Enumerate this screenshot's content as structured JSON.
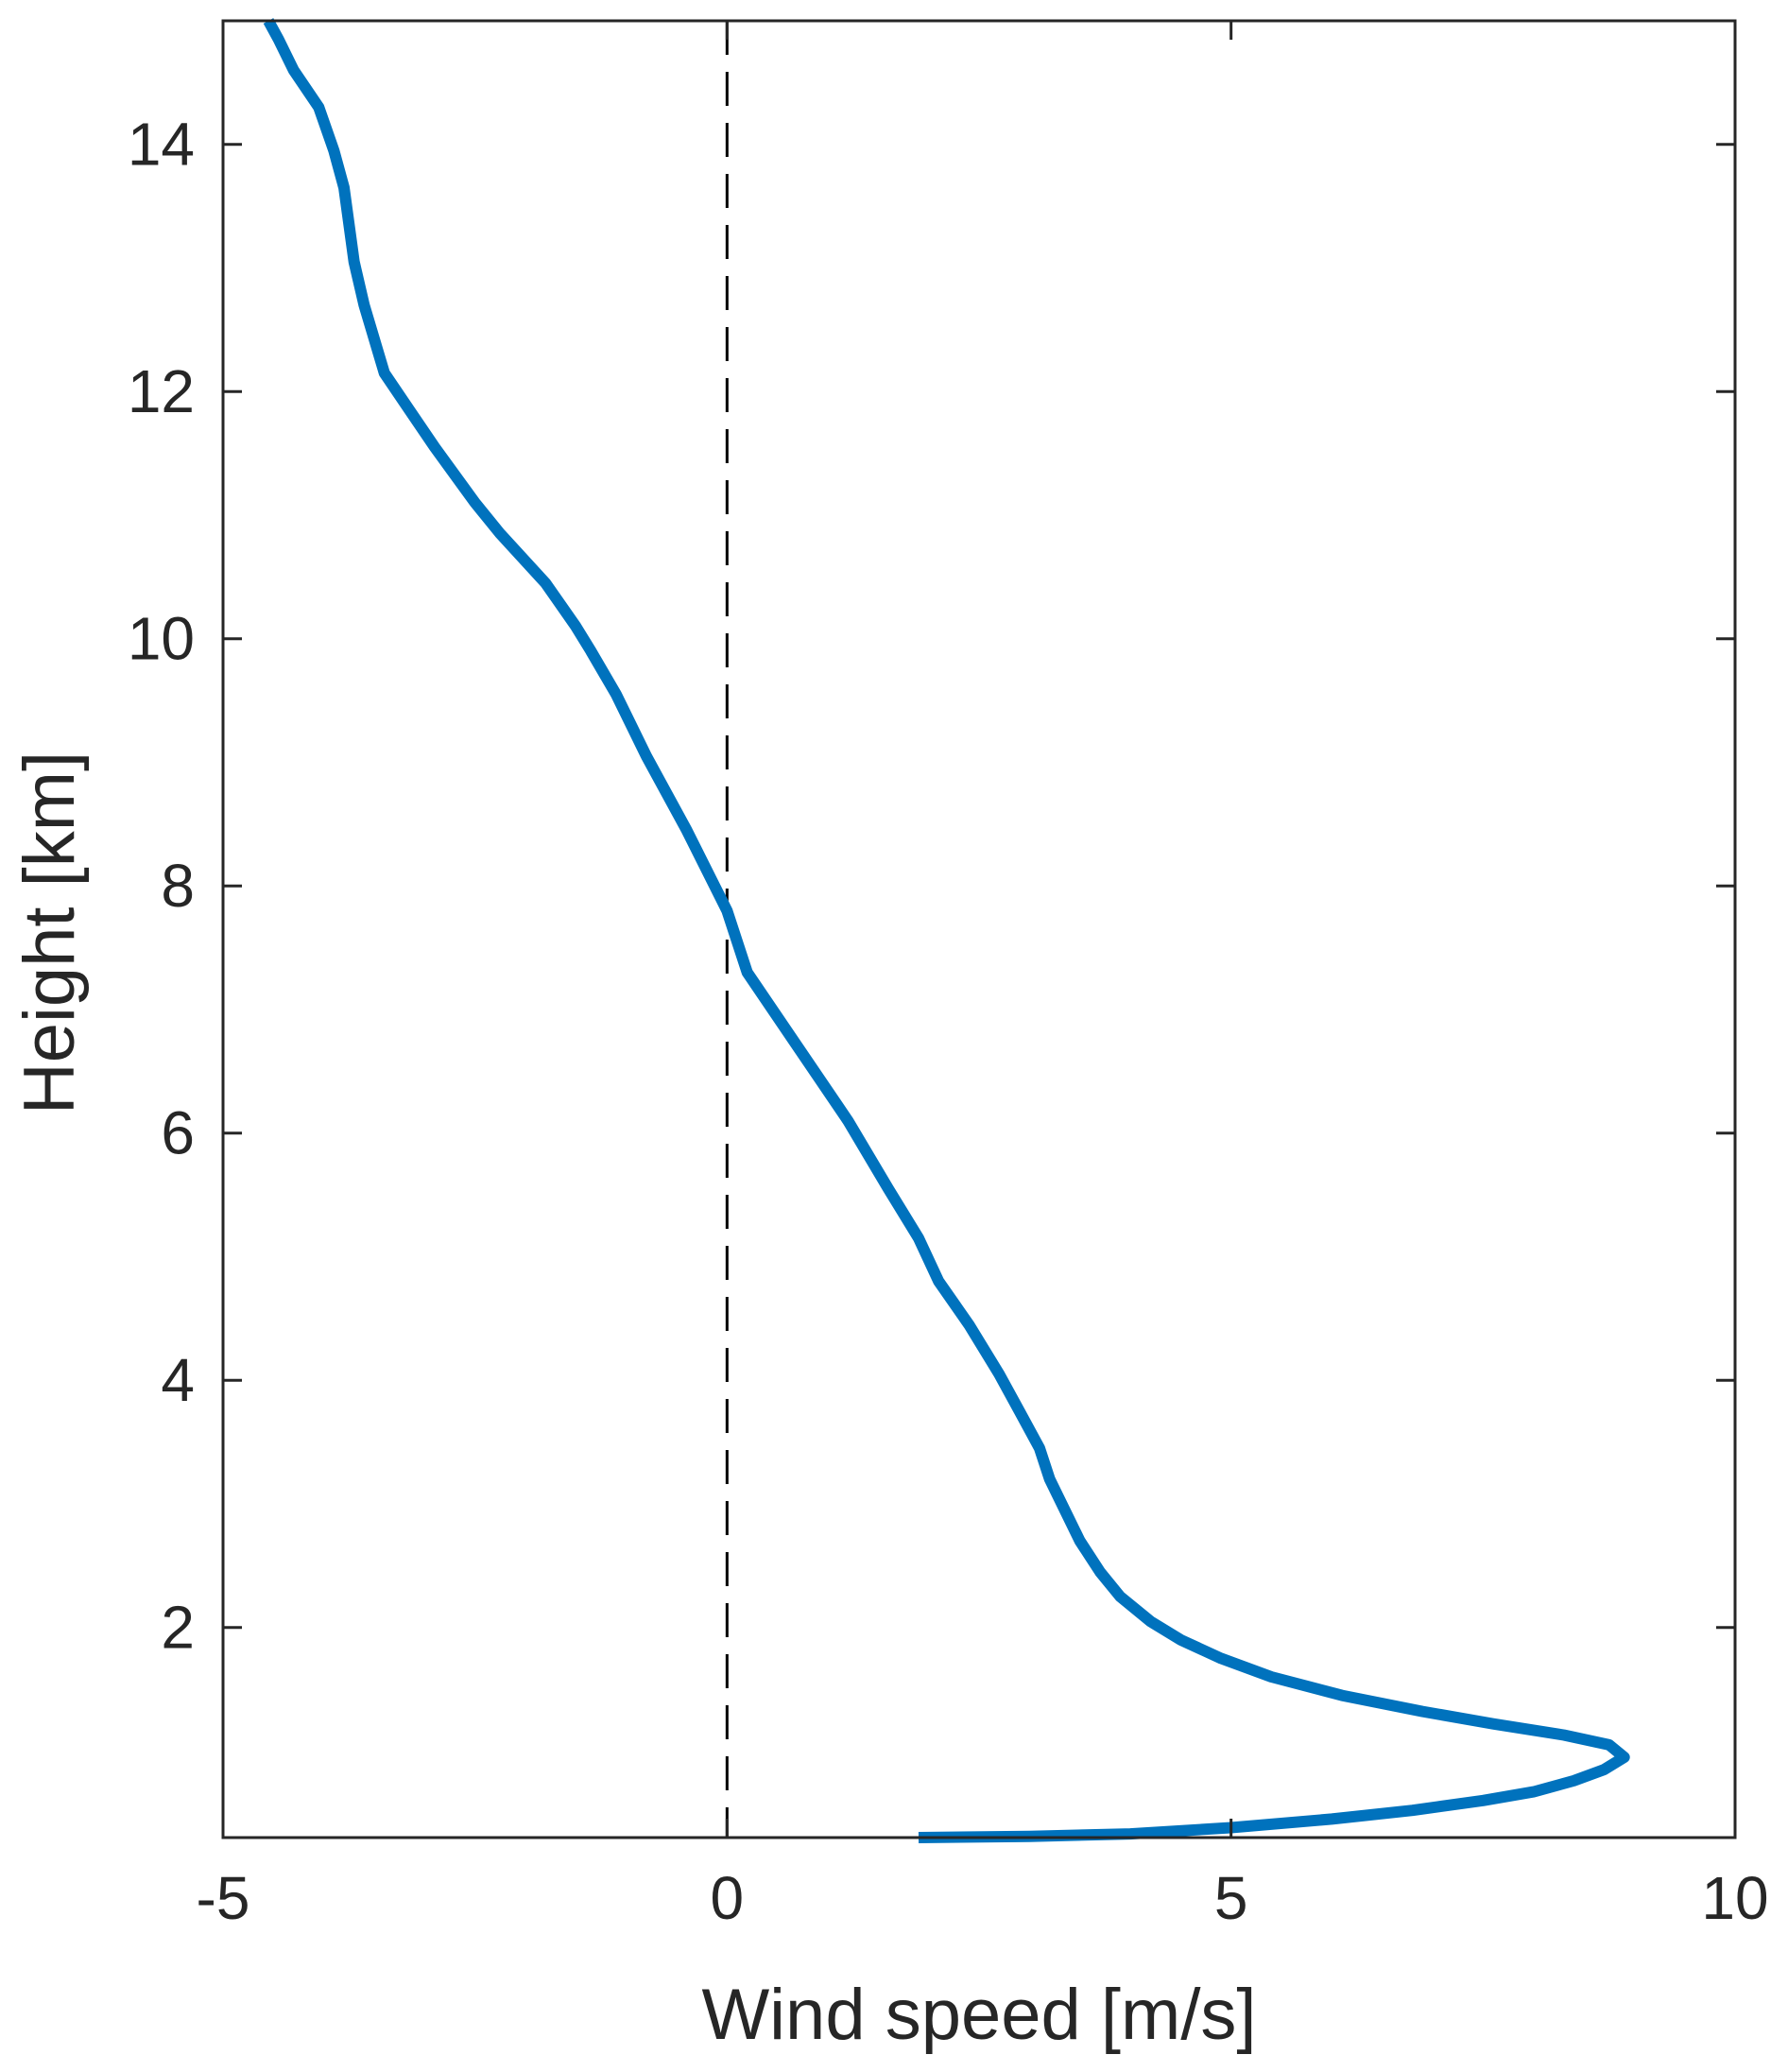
{
  "chart_data": {
    "type": "line",
    "title": "",
    "xlabel": "Wind speed [m/s]",
    "ylabel": "Height [km]",
    "xlim": [
      -5,
      10
    ],
    "ylim": [
      0.3,
      15
    ],
    "x_ticks": [
      -5,
      0,
      5,
      10
    ],
    "y_ticks": [
      2,
      4,
      6,
      8,
      10,
      12,
      14
    ],
    "x_tick_labels": [
      "-5",
      "0",
      "5",
      "10"
    ],
    "y_tick_labels": [
      "2",
      "4",
      "6",
      "8",
      "10",
      "12",
      "14"
    ],
    "grid": false,
    "legend": false,
    "reference_line": {
      "x": 0,
      "style": "dashed",
      "color": "#000000"
    },
    "series": [
      {
        "color": "#0072BD",
        "x": [
          1.9,
          3.0,
          4.0,
          5.0,
          6.0,
          6.8,
          7.5,
          8.0,
          8.4,
          8.7,
          8.9,
          8.75,
          8.3,
          7.6,
          6.9,
          6.1,
          5.4,
          4.9,
          4.5,
          4.2,
          3.9,
          3.7,
          3.5,
          3.35,
          3.2,
          3.1,
          2.9,
          2.7,
          2.4,
          2.1,
          1.9,
          1.6,
          1.2,
          0.7,
          0.2,
          0.0,
          -0.4,
          -0.8,
          -1.1,
          -1.35,
          -1.5,
          -1.8,
          -2.25,
          -2.5,
          -2.9,
          -3.15,
          -3.4,
          -3.6,
          -3.7,
          -3.8,
          -3.9,
          -4.05,
          -4.3,
          -4.45,
          -4.55
        ],
        "y": [
          0.3,
          0.31,
          0.33,
          0.38,
          0.45,
          0.52,
          0.6,
          0.67,
          0.76,
          0.85,
          0.95,
          1.05,
          1.13,
          1.22,
          1.32,
          1.45,
          1.6,
          1.75,
          1.9,
          2.05,
          2.25,
          2.45,
          2.7,
          2.95,
          3.2,
          3.45,
          3.75,
          4.05,
          4.45,
          4.8,
          5.15,
          5.55,
          6.1,
          6.7,
          7.3,
          7.8,
          8.45,
          9.05,
          9.55,
          9.9,
          10.1,
          10.45,
          10.85,
          11.1,
          11.55,
          11.85,
          12.15,
          12.7,
          13.05,
          13.65,
          13.95,
          14.3,
          14.6,
          14.85,
          15.0
        ]
      }
    ]
  }
}
